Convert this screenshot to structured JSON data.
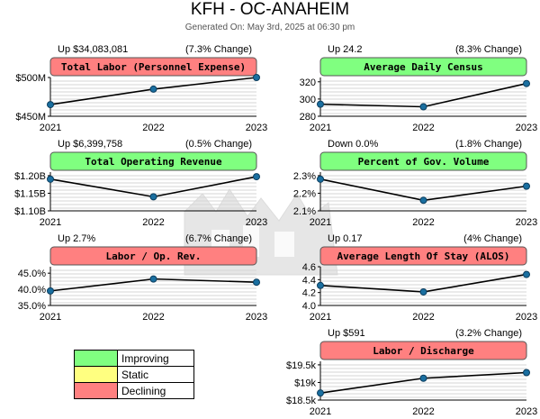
{
  "header": {
    "title": "KFH - OC-ANAHEIM",
    "subtitle": "Generated On: May 3rd, 2025 at 06:30 pm"
  },
  "colors": {
    "improving": "#80ff80",
    "static": "#ffff80",
    "declining": "#ff8080",
    "line": "#000000",
    "marker": "#1a6fa0"
  },
  "legend": [
    {
      "label": "Improving",
      "color": "#80ff80"
    },
    {
      "label": "Static",
      "color": "#ffff80"
    },
    {
      "label": "Declining",
      "color": "#ff8080"
    }
  ],
  "chart_data": [
    {
      "type": "line",
      "title": "Total Labor (Personnel Expense)",
      "status": "declining",
      "change_text": "Up $34,083,081",
      "pct_text": "(7.3% Change)",
      "categories": [
        "2021",
        "2022",
        "2023"
      ],
      "values": [
        465000000,
        485000000,
        500000000
      ],
      "ylim": [
        450000000,
        500000000
      ],
      "yticks": [
        450000000,
        500000000
      ],
      "yticklabels": [
        "$450M",
        "$500M"
      ]
    },
    {
      "type": "line",
      "title": "Average Daily Census",
      "status": "improving",
      "change_text": "Up 24.2",
      "pct_text": "(8.3% Change)",
      "categories": [
        "2021",
        "2022",
        "2023"
      ],
      "values": [
        294,
        291,
        318
      ],
      "ylim": [
        280,
        325
      ],
      "yticks": [
        280,
        300,
        320
      ],
      "yticklabels": [
        "280",
        "300",
        "320"
      ]
    },
    {
      "type": "line",
      "title": "Total Operating Revenue",
      "status": "improving",
      "change_text": "Up $6,399,758",
      "pct_text": "(0.5% Change)",
      "categories": [
        "2021",
        "2022",
        "2023"
      ],
      "values": [
        1190000000,
        1140000000,
        1197000000
      ],
      "ylim": [
        1100000000,
        1210000000
      ],
      "yticks": [
        1100000000,
        1150000000,
        1200000000
      ],
      "yticklabels": [
        "$1.10B",
        "$1.15B",
        "$1.20B"
      ]
    },
    {
      "type": "line",
      "title": "Percent of Gov. Volume",
      "status": "improving",
      "change_text": "Down 0.0%",
      "pct_text": "(1.8% Change)",
      "categories": [
        "2021",
        "2022",
        "2023"
      ],
      "values": [
        2.28,
        2.16,
        2.24
      ],
      "ylim": [
        2.1,
        2.32
      ],
      "yticks": [
        2.1,
        2.2,
        2.3
      ],
      "yticklabels": [
        "2.1%",
        "2.2%",
        "2.3%"
      ]
    },
    {
      "type": "line",
      "title": "Labor / Op. Rev.",
      "status": "declining",
      "change_text": "Up 2.7%",
      "pct_text": "(6.7% Change)",
      "categories": [
        "2021",
        "2022",
        "2023"
      ],
      "values": [
        39.5,
        43.2,
        42.2
      ],
      "ylim": [
        35,
        47
      ],
      "yticks": [
        35,
        40,
        45
      ],
      "yticklabels": [
        "35.0%",
        "40.0%",
        "45.0%"
      ]
    },
    {
      "type": "line",
      "title": "Average Length Of Stay (ALOS)",
      "status": "declining",
      "change_text": "Up 0.17",
      "pct_text": "(4% Change)",
      "categories": [
        "2021",
        "2022",
        "2023"
      ],
      "values": [
        4.31,
        4.21,
        4.48
      ],
      "ylim": [
        4.0,
        4.6
      ],
      "yticks": [
        4.0,
        4.2,
        4.4,
        4.6
      ],
      "yticklabels": [
        "4.0",
        "4.2",
        "4.4",
        "4.6"
      ]
    },
    {
      "type": "line",
      "title": "Labor / Discharge",
      "status": "declining",
      "change_text": "Up $591",
      "pct_text": "(3.2% Change)",
      "categories": [
        "2021",
        "2022",
        "2023"
      ],
      "values": [
        18700,
        19120,
        19280
      ],
      "ylim": [
        18500,
        19600
      ],
      "yticks": [
        18500,
        19000,
        19500
      ],
      "yticklabels": [
        "$18.5k",
        "$19k",
        "$19.5k"
      ]
    }
  ]
}
